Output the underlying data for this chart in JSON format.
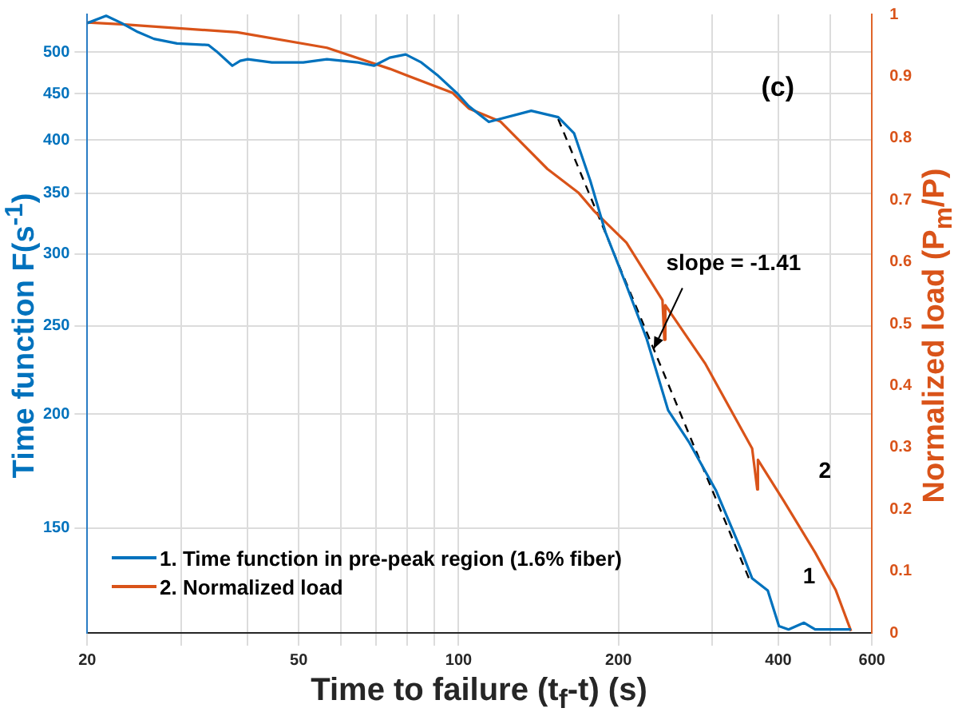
{
  "chart_data": {
    "type": "line",
    "xlabel": "Time to failure (t$_{f}$-t) (s)",
    "ylabel": "Time function F(s$^{-1}$)",
    "y2label": "Normalized load (P$_{m}$/P)",
    "log": "xy",
    "grid": true,
    "legend": "bottom left",
    "marker": "none",
    "line_style": "solid",
    "xlim": [
      20,
      600
    ],
    "xticks": [
      20,
      {
        "value": 30,
        "label": null
      },
      {
        "value": 40,
        "label": null
      },
      50,
      {
        "value": 60,
        "label": null
      },
      {
        "value": 70,
        "label": null
      },
      {
        "value": 80,
        "label": null
      },
      {
        "value": 90,
        "label": null
      },
      100,
      200,
      {
        "value": 300,
        "label": null
      },
      400,
      {
        "value": 500,
        "label": null
      },
      600
    ],
    "ylim": [
      115,
      550
    ],
    "yticks": [
      150,
      200,
      250,
      300,
      350,
      400,
      450,
      500
    ],
    "y2lim": [
      0,
      1
    ],
    "y2ticks": [
      0,
      0.1,
      0.2,
      0.3,
      0.4,
      0.5,
      0.6,
      0.7,
      0.8,
      0.9,
      1
    ],
    "series": [
      {
        "name": "1. Time function in pre-peak region (1.6% fiber)",
        "color": "#0072bd",
        "x": [
          20,
          21.7,
          23.2,
          24.9,
          26.7,
          29.5,
          33.8,
          35,
          37.5,
          38.8,
          40.1,
          44.5,
          51,
          56.5,
          64.7,
          69.3,
          74.2,
          79.5,
          85.1,
          91.1,
          99.5,
          104.5,
          114,
          137,
          154,
          165,
          177,
          189,
          207,
          226,
          248,
          272,
          305,
          340,
          357,
          382,
          401,
          418,
          447,
          469,
          548
        ],
        "values": [
          538,
          548,
          538,
          526,
          517,
          511,
          509,
          501,
          483,
          489,
          491,
          487,
          487,
          491,
          487,
          483,
          493,
          497,
          487,
          472,
          450,
          436,
          419,
          431,
          424,
          407,
          361,
          317,
          277,
          242,
          202,
          186,
          165,
          142,
          132,
          128,
          117,
          116,
          118,
          116,
          116
        ]
      },
      {
        "name": "2. Normalized load",
        "color": "#d95319",
        "axis": "y2",
        "x": [
          20,
          23.2,
          38.3,
          56.5,
          74.2,
          97.5,
          104.5,
          119.8,
          147,
          168,
          180,
          207,
          242,
          244,
          245,
          291,
          357,
          365,
          366,
          409,
          469,
          513,
          548
        ],
        "values": [
          0.987,
          0.984,
          0.971,
          0.946,
          0.912,
          0.873,
          0.848,
          0.827,
          0.75,
          0.712,
          0.682,
          0.631,
          0.538,
          0.474,
          0.53,
          0.436,
          0.298,
          0.232,
          0.28,
          0.214,
          0.13,
          0.069,
          0.003
        ]
      },
      {
        "color": "#000000",
        "line_style": "dashed",
        "x": [
          154,
          352
        ],
        "values": [
          422,
          132
        ]
      }
    ],
    "annotations": [
      "(c)",
      {
        "text": "slope = -1.41",
        "x": 233,
        "y": 236
      },
      "1",
      "2"
    ]
  }
}
